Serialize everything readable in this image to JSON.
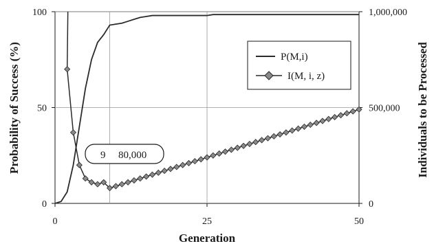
{
  "chart_data": {
    "type": "line",
    "xlabel": "Generation",
    "ylabel_left": "Probability of Success (%)",
    "ylabel_right": "Individuals to be Processed",
    "xlim": [
      0,
      50
    ],
    "ylim_left": [
      0,
      100
    ],
    "ylim_right": [
      0,
      1000000
    ],
    "x_ticks": [
      0,
      25,
      50
    ],
    "y_left_ticks": [
      0,
      50,
      100
    ],
    "y_right_ticks": [
      "0",
      "500,000",
      "1,000,000"
    ],
    "grid": {
      "x": [
        9,
        25
      ],
      "y": [
        50,
        100
      ]
    },
    "legend_position": "top-right",
    "series": [
      {
        "name": "P(M,i)",
        "axis": "left",
        "marker": "none",
        "x": [
          0,
          1,
          2,
          3,
          4,
          5,
          6,
          7,
          8,
          9,
          10,
          11,
          12,
          13,
          14,
          15,
          16,
          17,
          18,
          19,
          20,
          21,
          22,
          23,
          24,
          25,
          26,
          27,
          28,
          29,
          30,
          31,
          32,
          33,
          34,
          35,
          36,
          37,
          38,
          39,
          40,
          41,
          42,
          43,
          44,
          45,
          46,
          47,
          48,
          49,
          50
        ],
        "y": [
          0,
          1,
          6,
          20,
          40,
          60,
          75,
          84,
          88,
          93,
          93.5,
          94,
          95,
          96,
          97,
          97.5,
          98,
          98,
          98,
          98,
          98,
          98,
          98,
          98,
          98,
          98,
          98.5,
          98.5,
          98.5,
          98.5,
          98.5,
          98.5,
          98.5,
          98.5,
          98.5,
          98.5,
          98.5,
          98.5,
          98.5,
          98.5,
          98.5,
          98.5,
          98.5,
          98.5,
          98.5,
          98.5,
          98.5,
          98.5,
          98.5,
          98.5,
          98.5
        ]
      },
      {
        "name": "I(M, i, z)",
        "axis": "right",
        "marker": "diamond",
        "x": [
          2,
          3,
          4,
          5,
          6,
          7,
          8,
          9,
          10,
          11,
          12,
          13,
          14,
          15,
          16,
          17,
          18,
          19,
          20,
          21,
          22,
          23,
          24,
          25,
          26,
          27,
          28,
          29,
          30,
          31,
          32,
          33,
          34,
          35,
          36,
          37,
          38,
          39,
          40,
          41,
          42,
          43,
          44,
          45,
          46,
          47,
          48,
          49,
          50
        ],
        "y": [
          700000,
          370000,
          200000,
          130000,
          110000,
          100000,
          110000,
          80000,
          90000,
          100000,
          110000,
          120000,
          130000,
          140000,
          150000,
          160000,
          170000,
          180000,
          190000,
          200000,
          210000,
          220000,
          230000,
          240000,
          250000,
          260000,
          270000,
          280000,
          290000,
          300000,
          310000,
          320000,
          330000,
          340000,
          350000,
          360000,
          370000,
          380000,
          390000,
          400000,
          410000,
          420000,
          430000,
          440000,
          450000,
          460000,
          470000,
          480000,
          490000
        ]
      }
    ],
    "annotation": {
      "generation": "9",
      "individuals": "80,000"
    }
  }
}
